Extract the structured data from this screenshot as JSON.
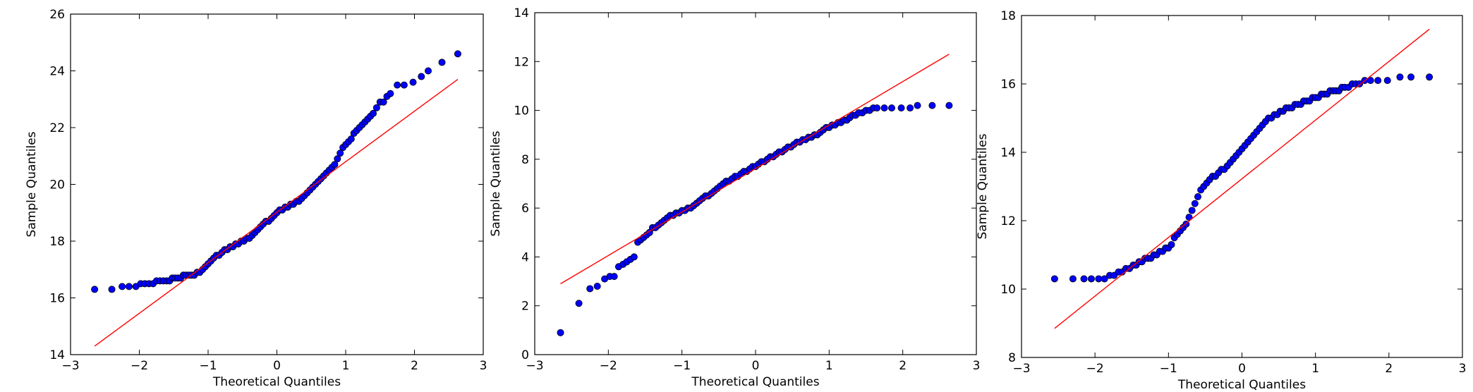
{
  "colors": {
    "points": "#0000ff",
    "point_edge": "#000000",
    "line": "#ff0000",
    "axes": "#000000",
    "background": "#ffffff"
  },
  "chart_data": [
    {
      "type": "scatter",
      "title": "",
      "xlabel": "Theoretical Quantiles",
      "ylabel": "Sample Quantiles",
      "xlim": [
        -3,
        3
      ],
      "ylim": [
        14,
        26
      ],
      "xticks": [
        -3,
        -2,
        -1,
        0,
        1,
        2,
        3
      ],
      "yticks": [
        14,
        16,
        18,
        20,
        22,
        24,
        26
      ],
      "grid": false,
      "series": [
        {
          "x": [
            -2.65,
            -2.4,
            -2.25,
            -2.15,
            -2.05,
            -1.98,
            -1.92,
            -1.86,
            -1.8,
            -1.75,
            -1.7,
            -1.65,
            -1.6,
            -1.56,
            -1.52,
            -1.48,
            -1.44,
            -1.4,
            -1.36,
            -1.32,
            -1.28,
            -1.24,
            -1.2,
            -1.16,
            -1.12,
            -1.08,
            -1.04,
            -1.0,
            -0.96,
            -0.92,
            -0.88,
            -0.84,
            -0.8,
            -0.76,
            -0.72,
            -0.68,
            -0.64,
            -0.6,
            -0.56,
            -0.52,
            -0.48,
            -0.44,
            -0.4,
            -0.36,
            -0.32,
            -0.28,
            -0.24,
            -0.2,
            -0.16,
            -0.12,
            -0.08,
            -0.04,
            0.0,
            0.04,
            0.08,
            0.12,
            0.16,
            0.2,
            0.24,
            0.28,
            0.32,
            0.36,
            0.4,
            0.44,
            0.48,
            0.52,
            0.56,
            0.6,
            0.64,
            0.68,
            0.72,
            0.76,
            0.8,
            0.84,
            0.88,
            0.92,
            0.96,
            1.0,
            1.04,
            1.08,
            1.12,
            1.16,
            1.2,
            1.24,
            1.28,
            1.32,
            1.36,
            1.4,
            1.45,
            1.5,
            1.55,
            1.6,
            1.65,
            1.75,
            1.85,
            1.98,
            2.1,
            2.2,
            2.4,
            2.63
          ],
          "y": [
            16.3,
            16.3,
            16.4,
            16.4,
            16.4,
            16.5,
            16.5,
            16.5,
            16.5,
            16.6,
            16.6,
            16.6,
            16.6,
            16.6,
            16.7,
            16.7,
            16.7,
            16.7,
            16.8,
            16.8,
            16.8,
            16.8,
            16.8,
            16.9,
            16.9,
            17.0,
            17.1,
            17.2,
            17.3,
            17.4,
            17.5,
            17.5,
            17.6,
            17.7,
            17.7,
            17.8,
            17.8,
            17.9,
            17.9,
            18.0,
            18.0,
            18.1,
            18.1,
            18.2,
            18.3,
            18.4,
            18.5,
            18.6,
            18.7,
            18.7,
            18.8,
            18.9,
            19.0,
            19.1,
            19.1,
            19.2,
            19.2,
            19.3,
            19.3,
            19.4,
            19.4,
            19.5,
            19.6,
            19.7,
            19.8,
            19.9,
            20.0,
            20.1,
            20.2,
            20.3,
            20.4,
            20.5,
            20.6,
            20.7,
            20.9,
            21.1,
            21.3,
            21.4,
            21.5,
            21.6,
            21.8,
            21.9,
            22.0,
            22.1,
            22.2,
            22.3,
            22.4,
            22.5,
            22.7,
            22.9,
            22.9,
            23.1,
            23.2,
            23.5,
            23.5,
            23.6,
            23.8,
            24.0,
            24.3,
            24.6
          ],
          "fit_line": {
            "x": [
              -2.65,
              2.63
            ],
            "y": [
              14.3,
              23.7
            ]
          }
        }
      ]
    },
    {
      "type": "scatter",
      "title": "",
      "xlabel": "Theoretical Quantiles",
      "ylabel": "Sample Quantiles",
      "xlim": [
        -3,
        3
      ],
      "ylim": [
        0,
        14
      ],
      "xticks": [
        -3,
        -2,
        -1,
        0,
        1,
        2,
        3
      ],
      "yticks": [
        0,
        2,
        4,
        6,
        8,
        10,
        12,
        14
      ],
      "grid": false,
      "series": [
        {
          "x": [
            -2.65,
            -2.4,
            -2.25,
            -2.15,
            -2.05,
            -1.98,
            -1.92,
            -1.86,
            -1.8,
            -1.75,
            -1.7,
            -1.65,
            -1.6,
            -1.56,
            -1.52,
            -1.48,
            -1.44,
            -1.4,
            -1.36,
            -1.32,
            -1.28,
            -1.24,
            -1.2,
            -1.16,
            -1.12,
            -1.08,
            -1.04,
            -1.0,
            -0.96,
            -0.92,
            -0.88,
            -0.84,
            -0.8,
            -0.76,
            -0.72,
            -0.68,
            -0.64,
            -0.6,
            -0.56,
            -0.52,
            -0.48,
            -0.44,
            -0.4,
            -0.36,
            -0.32,
            -0.28,
            -0.24,
            -0.2,
            -0.16,
            -0.12,
            -0.08,
            -0.04,
            0.0,
            0.04,
            0.08,
            0.12,
            0.16,
            0.2,
            0.24,
            0.28,
            0.32,
            0.36,
            0.4,
            0.44,
            0.48,
            0.52,
            0.56,
            0.6,
            0.64,
            0.68,
            0.72,
            0.76,
            0.8,
            0.84,
            0.88,
            0.92,
            0.96,
            1.0,
            1.04,
            1.08,
            1.12,
            1.16,
            1.2,
            1.24,
            1.28,
            1.32,
            1.36,
            1.4,
            1.45,
            1.5,
            1.55,
            1.6,
            1.65,
            1.75,
            1.85,
            1.98,
            2.1,
            2.2,
            2.4,
            2.63
          ],
          "y": [
            0.9,
            2.1,
            2.7,
            2.8,
            3.1,
            3.2,
            3.2,
            3.6,
            3.7,
            3.8,
            3.9,
            4.0,
            4.6,
            4.7,
            4.8,
            4.9,
            5.0,
            5.2,
            5.2,
            5.3,
            5.4,
            5.5,
            5.6,
            5.7,
            5.7,
            5.8,
            5.8,
            5.9,
            5.9,
            6.0,
            6.0,
            6.1,
            6.2,
            6.3,
            6.4,
            6.5,
            6.5,
            6.6,
            6.7,
            6.8,
            6.9,
            7.0,
            7.1,
            7.1,
            7.2,
            7.3,
            7.3,
            7.4,
            7.5,
            7.5,
            7.6,
            7.7,
            7.7,
            7.8,
            7.9,
            7.9,
            8.0,
            8.1,
            8.1,
            8.2,
            8.3,
            8.3,
            8.4,
            8.5,
            8.5,
            8.6,
            8.7,
            8.7,
            8.8,
            8.8,
            8.9,
            8.9,
            9.0,
            9.0,
            9.1,
            9.2,
            9.3,
            9.3,
            9.4,
            9.4,
            9.5,
            9.5,
            9.6,
            9.6,
            9.7,
            9.8,
            9.8,
            9.9,
            9.9,
            10.0,
            10.0,
            10.1,
            10.1,
            10.1,
            10.1,
            10.1,
            10.1,
            10.2,
            10.2,
            10.2
          ],
          "fit_line": {
            "x": [
              -2.65,
              2.63
            ],
            "y": [
              2.9,
              12.3
            ]
          }
        }
      ]
    },
    {
      "type": "scatter",
      "title": "",
      "xlabel": "Theoretical Quantiles",
      "ylabel": "Sample Quantiles",
      "xlim": [
        -3,
        3
      ],
      "ylim": [
        8,
        18
      ],
      "xticks": [
        -3,
        -2,
        -1,
        0,
        1,
        2,
        3
      ],
      "yticks": [
        8,
        10,
        12,
        14,
        16,
        18
      ],
      "grid": false,
      "series": [
        {
          "x": [
            -2.55,
            -2.3,
            -2.15,
            -2.05,
            -1.95,
            -1.87,
            -1.8,
            -1.74,
            -1.68,
            -1.63,
            -1.58,
            -1.53,
            -1.48,
            -1.44,
            -1.4,
            -1.36,
            -1.32,
            -1.28,
            -1.24,
            -1.2,
            -1.16,
            -1.12,
            -1.08,
            -1.04,
            -1.0,
            -0.96,
            -0.92,
            -0.88,
            -0.84,
            -0.8,
            -0.76,
            -0.72,
            -0.68,
            -0.64,
            -0.6,
            -0.56,
            -0.52,
            -0.48,
            -0.44,
            -0.4,
            -0.36,
            -0.32,
            -0.28,
            -0.24,
            -0.2,
            -0.16,
            -0.12,
            -0.08,
            -0.04,
            0.0,
            0.04,
            0.08,
            0.12,
            0.16,
            0.2,
            0.24,
            0.28,
            0.32,
            0.36,
            0.4,
            0.44,
            0.48,
            0.52,
            0.56,
            0.6,
            0.64,
            0.68,
            0.72,
            0.76,
            0.8,
            0.84,
            0.88,
            0.92,
            0.96,
            1.0,
            1.04,
            1.08,
            1.12,
            1.16,
            1.2,
            1.24,
            1.28,
            1.32,
            1.36,
            1.4,
            1.45,
            1.5,
            1.55,
            1.6,
            1.67,
            1.75,
            1.85,
            1.98,
            2.15,
            2.3,
            2.55
          ],
          "y": [
            10.3,
            10.3,
            10.3,
            10.3,
            10.3,
            10.3,
            10.4,
            10.4,
            10.5,
            10.5,
            10.6,
            10.6,
            10.7,
            10.7,
            10.8,
            10.8,
            10.9,
            10.9,
            10.9,
            11.0,
            11.0,
            11.1,
            11.1,
            11.2,
            11.2,
            11.3,
            11.5,
            11.6,
            11.7,
            11.8,
            11.9,
            12.1,
            12.3,
            12.5,
            12.7,
            12.9,
            13.0,
            13.1,
            13.2,
            13.3,
            13.3,
            13.4,
            13.5,
            13.5,
            13.6,
            13.7,
            13.8,
            13.9,
            14.0,
            14.1,
            14.2,
            14.3,
            14.4,
            14.5,
            14.6,
            14.7,
            14.8,
            14.9,
            15.0,
            15.0,
            15.1,
            15.1,
            15.2,
            15.2,
            15.3,
            15.3,
            15.3,
            15.4,
            15.4,
            15.4,
            15.5,
            15.5,
            15.5,
            15.6,
            15.6,
            15.6,
            15.7,
            15.7,
            15.7,
            15.8,
            15.8,
            15.8,
            15.8,
            15.9,
            15.9,
            15.9,
            16.0,
            16.0,
            16.0,
            16.1,
            16.1,
            16.1,
            16.1,
            16.2,
            16.2,
            16.2
          ],
          "fit_line": {
            "x": [
              -2.55,
              2.55
            ],
            "y": [
              8.85,
              17.6
            ]
          }
        }
      ]
    }
  ]
}
